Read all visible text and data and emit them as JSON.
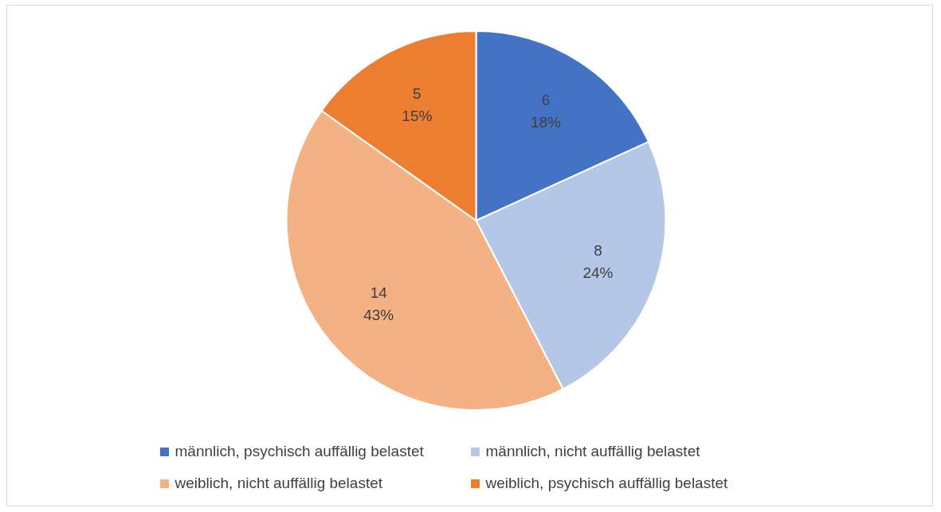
{
  "chart_data": {
    "type": "pie",
    "categories": [
      "männlich, psychisch auffällig belastet",
      "männlich, nicht auffällig belastet",
      "weiblich, nicht auffällig belastet",
      "weiblich, psychisch auffällig belastet"
    ],
    "values": [
      6,
      8,
      14,
      5
    ],
    "colors": [
      "#4472c4",
      "#b4c7e7",
      "#f4b183",
      "#ed7d31"
    ],
    "value_labels": [
      "6\n18%",
      "8\n24%",
      "14\n43%",
      "5\n15%"
    ],
    "legend": "bottom"
  }
}
